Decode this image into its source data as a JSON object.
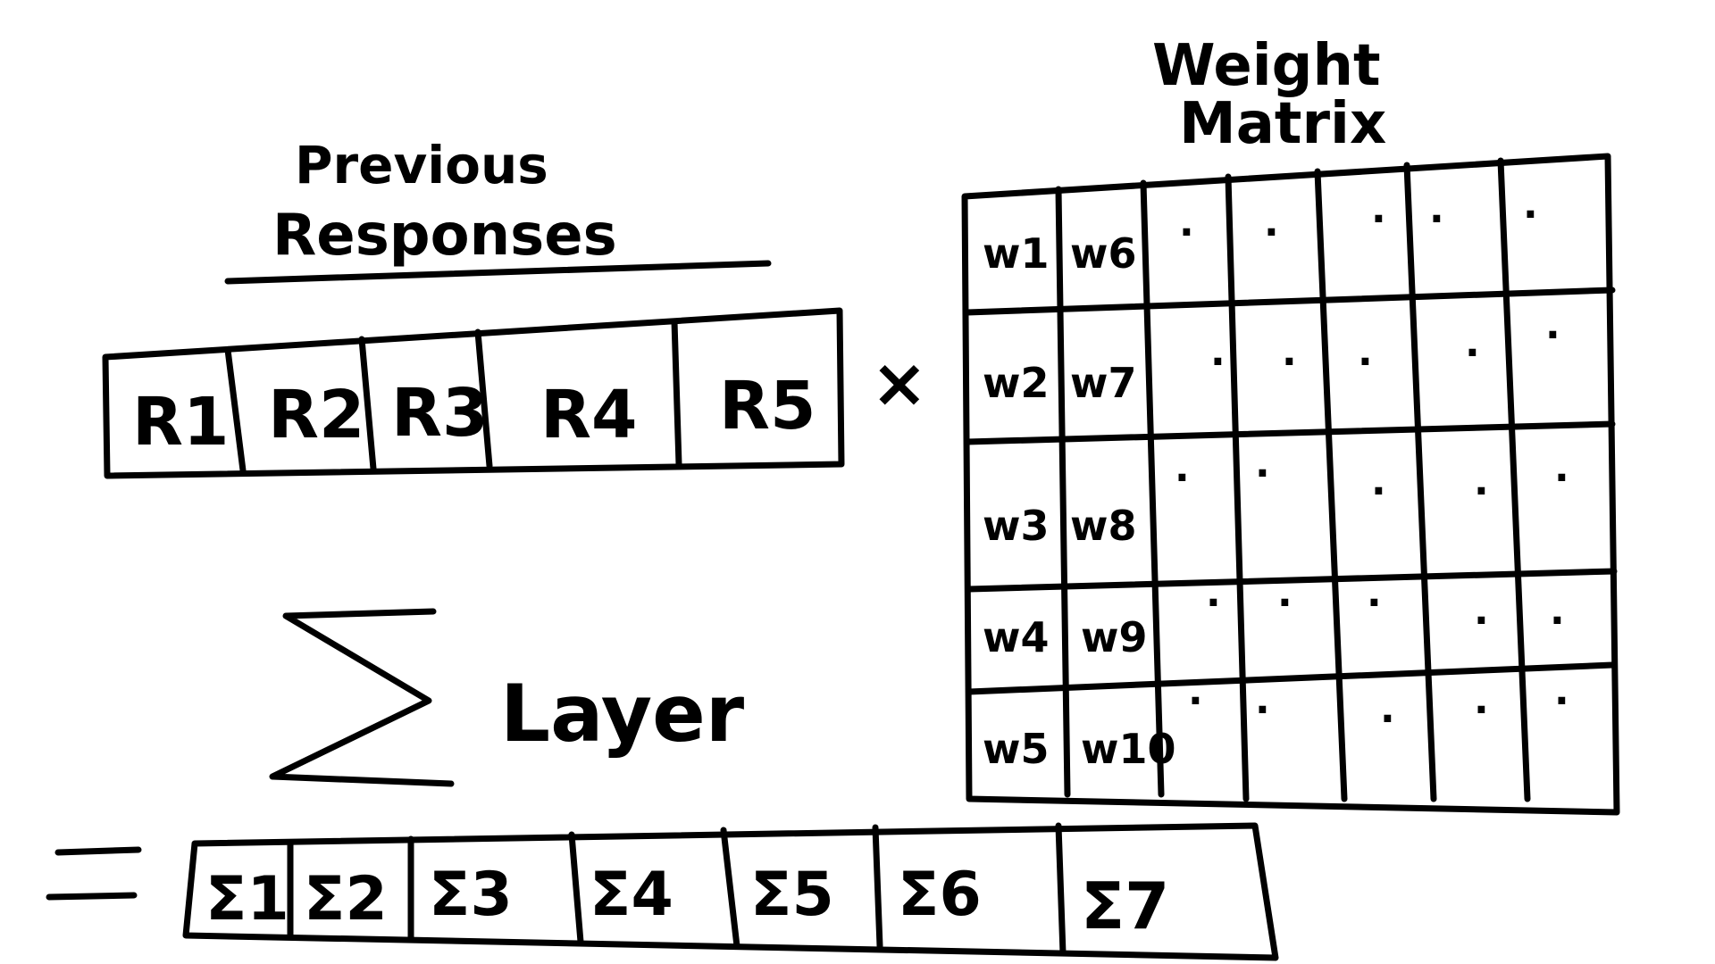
{
  "previous_responses": {
    "title_line1": "Previous",
    "title_line2": "Responses",
    "cells": [
      "R1",
      "R2",
      "R3",
      "R4",
      "R5"
    ]
  },
  "operator": "×",
  "weight_matrix": {
    "title_line1": "Weight",
    "title_line2": "Matrix",
    "rows": [
      [
        "w1",
        "w6",
        "·",
        "·",
        "·",
        "·",
        "·"
      ],
      [
        "w2",
        "w7",
        "·",
        "·",
        "·",
        "·",
        "·"
      ],
      [
        "w3",
        "w8",
        "·",
        "·",
        "·",
        "·",
        "·"
      ],
      [
        "w4",
        "w9",
        "·",
        "·",
        "·",
        "·",
        "·"
      ],
      [
        "w5",
        "w10",
        "·",
        "·",
        "·",
        "·",
        "·"
      ]
    ]
  },
  "sum_layer": {
    "symbol": "Σ",
    "label": "Layer"
  },
  "equals": "=",
  "output": {
    "cells": [
      "Σ1",
      "Σ2",
      "Σ3",
      "Σ4",
      "Σ5",
      "Σ6",
      "Σ7"
    ]
  }
}
